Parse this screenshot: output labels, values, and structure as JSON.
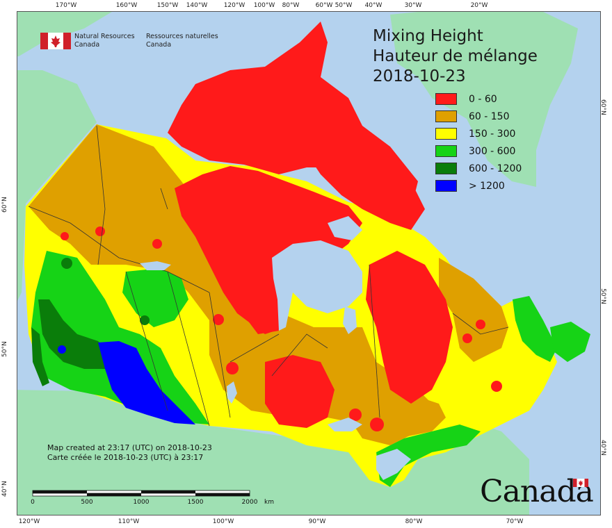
{
  "title": {
    "line1": "Mixing Height",
    "line2": "Hauteur de mélange",
    "date": "2018-10-23"
  },
  "legend": [
    {
      "label": "0 - 60",
      "color": "#ff1a1a"
    },
    {
      "label": "60 - 150",
      "color": "#dfa000"
    },
    {
      "label": "150 - 300",
      "color": "#ffff00"
    },
    {
      "label": "300 - 600",
      "color": "#16d316"
    },
    {
      "label": "600 - 1200",
      "color": "#0a7d0a"
    },
    {
      "label": "> 1200",
      "color": "#0000ff"
    }
  ],
  "agency": {
    "en_line1": "Natural Resources",
    "en_line2": "Canada",
    "fr_line1": "Ressources naturelles",
    "fr_line2": "Canada"
  },
  "created": {
    "en": "Map created at 23:17 (UTC) on 2018-10-23",
    "fr": "Carte créée le 2018-10-23 (UTC) à 23:17"
  },
  "scale": {
    "labels": [
      "0",
      "500",
      "1000",
      "1500",
      "2000"
    ],
    "unit": "km"
  },
  "wordmark": "Canada",
  "ticks": {
    "top": [
      "170°W",
      "160°W",
      "150°W",
      "140°W",
      "120°W",
      "100°W",
      "80°W",
      "60°W",
      "50°W",
      "40°W",
      "30°W",
      "20°W"
    ],
    "bottom": [
      "120°W",
      "110°W",
      "100°W",
      "90°W",
      "80°W",
      "70°W"
    ],
    "left": [
      "60°N",
      "50°N",
      "40°N"
    ],
    "right": [
      "60°N",
      "50°N",
      "40°N"
    ]
  },
  "colors": {
    "ocean": "#b4d2ee",
    "foreign_land": "#9fe0b3",
    "very_low": "#ff1a1a",
    "low": "#dfa000",
    "moderate": "#ffff00",
    "high": "#16d316",
    "very_high": "#0a7d0a",
    "extreme": "#0000ff"
  }
}
